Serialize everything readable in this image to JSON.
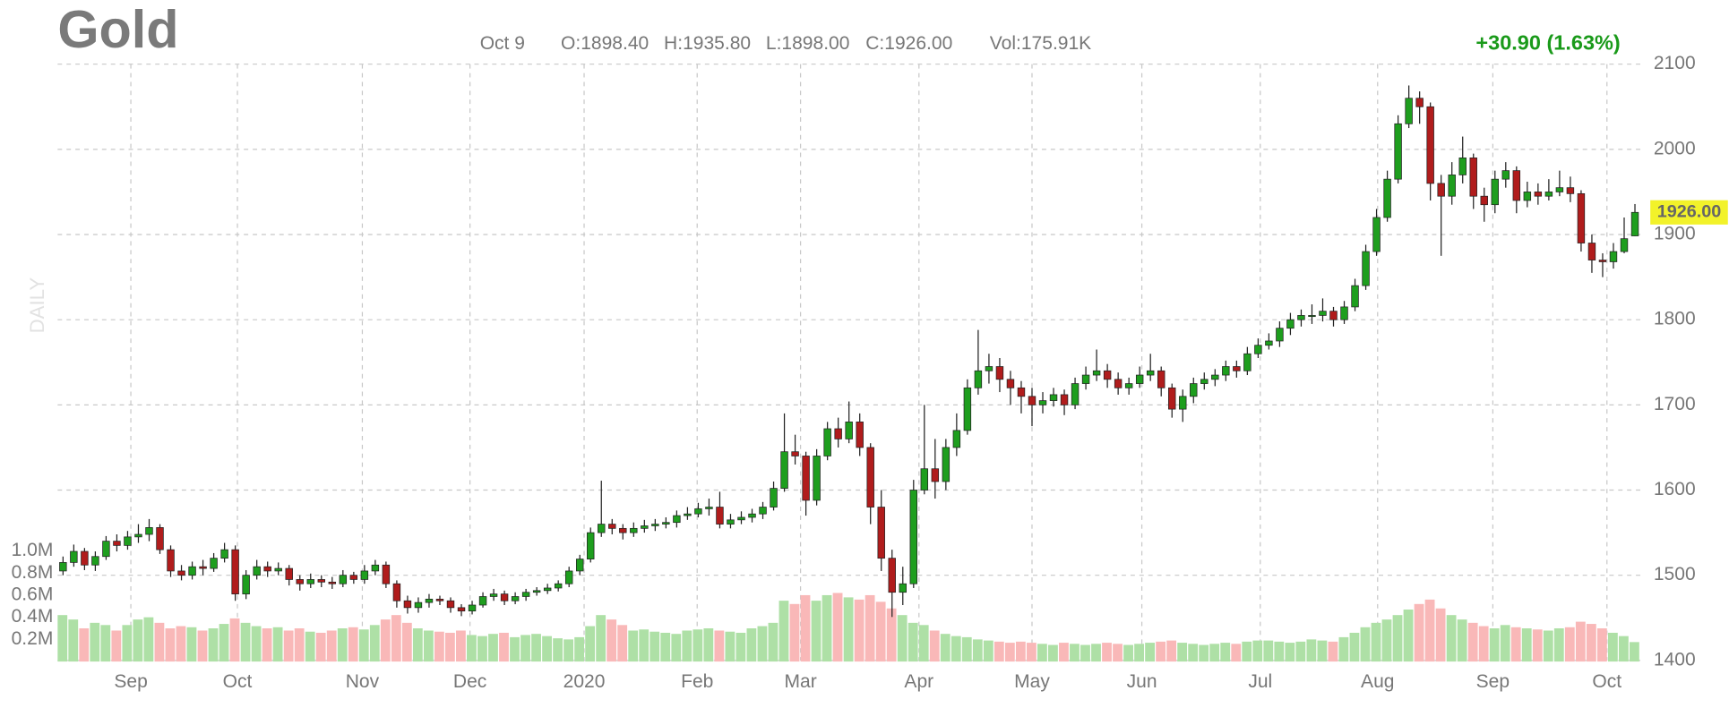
{
  "chart_data": {
    "type": "candlestick",
    "title": "Gold",
    "watermark": "DAILY",
    "info": [
      "Oct 9",
      "O:1898.40",
      "H:1935.80",
      "L:1898.00",
      "C:1926.00",
      "Vol:175.91K"
    ],
    "change": "+30.90 (1.63%)",
    "last_label": "1926.00",
    "up_color": "#1e9e1e",
    "down_color": "#b01c1c",
    "volume_up_color": "#aee0a6",
    "volume_down_color": "#f9b8b8",
    "grid": true,
    "xlim": [
      0,
      147
    ],
    "xticks": [
      {
        "value": 6.8,
        "label": "Sep"
      },
      {
        "value": 16.7,
        "label": "Oct"
      },
      {
        "value": 28.3,
        "label": "Nov"
      },
      {
        "value": 38.3,
        "label": "Dec"
      },
      {
        "value": 48.9,
        "label": "2020"
      },
      {
        "value": 59.4,
        "label": "Feb"
      },
      {
        "value": 69.0,
        "label": "Mar"
      },
      {
        "value": 80.0,
        "label": "Apr"
      },
      {
        "value": 90.5,
        "label": "May"
      },
      {
        "value": 100.7,
        "label": "Jun"
      },
      {
        "value": 111.7,
        "label": "Jul"
      },
      {
        "value": 122.6,
        "label": "Aug"
      },
      {
        "value": 133.3,
        "label": "Sep"
      },
      {
        "value": 143.9,
        "label": "Oct"
      }
    ],
    "ylim": [
      1400,
      2100
    ],
    "yticks": [
      1400,
      1500,
      1600,
      1700,
      1800,
      1900,
      2000,
      2100
    ],
    "y2lim": [
      0,
      1000000
    ],
    "y2ticks": [
      {
        "value": 200000,
        "label": "0.2M"
      },
      {
        "value": 400000,
        "label": "0.4M"
      },
      {
        "value": 600000,
        "label": "0.6M"
      },
      {
        "value": 800000,
        "label": "0.8M"
      },
      {
        "value": 1000000,
        "label": "1.0M"
      }
    ],
    "open": [
      1505,
      1515,
      1528,
      1512,
      1522,
      1540,
      1535,
      1545,
      1548,
      1556,
      1530,
      1505,
      1500,
      1510,
      1508,
      1520,
      1530,
      1478,
      1500,
      1510,
      1505,
      1508,
      1495,
      1490,
      1495,
      1492,
      1490,
      1500,
      1495,
      1505,
      1512,
      1490,
      1470,
      1462,
      1468,
      1472,
      1470,
      1462,
      1458,
      1465,
      1475,
      1478,
      1470,
      1475,
      1480,
      1482,
      1485,
      1490,
      1505,
      1519,
      1550,
      1560,
      1555,
      1550,
      1555,
      1558,
      1560,
      1562,
      1570,
      1572,
      1578,
      1580,
      1560,
      1565,
      1568,
      1572,
      1580,
      1602,
      1645,
      1640,
      1588,
      1640,
      1672,
      1660,
      1680,
      1650,
      1580,
      1520,
      1480,
      1490,
      1600,
      1625,
      1610,
      1650,
      1670,
      1720,
      1740,
      1745,
      1730,
      1720,
      1710,
      1700,
      1705,
      1712,
      1700,
      1725,
      1735,
      1740,
      1730,
      1720,
      1725,
      1735,
      1740,
      1720,
      1695,
      1710,
      1725,
      1730,
      1735,
      1745,
      1740,
      1760,
      1770,
      1775,
      1790,
      1800,
      1805,
      1805,
      1810,
      1800,
      1815,
      1840,
      1880,
      1920,
      1965,
      2030,
      2060,
      2050,
      1960,
      1945,
      1970,
      1990,
      1945,
      1935,
      1965,
      1975,
      1940,
      1950,
      1945,
      1950,
      1955,
      1948,
      1890,
      1870,
      1868,
      1880,
      1898.4
    ],
    "high": [
      1522,
      1536,
      1532,
      1528,
      1546,
      1548,
      1552,
      1560,
      1566,
      1560,
      1535,
      1512,
      1516,
      1518,
      1526,
      1538,
      1535,
      1506,
      1518,
      1516,
      1515,
      1512,
      1500,
      1502,
      1500,
      1498,
      1506,
      1504,
      1512,
      1518,
      1516,
      1494,
      1476,
      1474,
      1478,
      1476,
      1474,
      1466,
      1470,
      1480,
      1484,
      1482,
      1480,
      1484,
      1486,
      1490,
      1494,
      1510,
      1524,
      1556,
      1611,
      1566,
      1560,
      1562,
      1565,
      1566,
      1568,
      1576,
      1580,
      1585,
      1590,
      1598,
      1572,
      1575,
      1578,
      1586,
      1610,
      1690,
      1665,
      1645,
      1648,
      1680,
      1685,
      1704,
      1690,
      1655,
      1600,
      1530,
      1510,
      1612,
      1700,
      1660,
      1660,
      1690,
      1730,
      1788,
      1760,
      1755,
      1740,
      1728,
      1720,
      1715,
      1720,
      1718,
      1732,
      1745,
      1765,
      1748,
      1738,
      1732,
      1745,
      1760,
      1745,
      1725,
      1718,
      1732,
      1738,
      1742,
      1752,
      1752,
      1768,
      1778,
      1784,
      1798,
      1808,
      1812,
      1818,
      1825,
      1815,
      1822,
      1848,
      1888,
      1930,
      1975,
      2040,
      2075,
      2068,
      2055,
      1970,
      1985,
      2015,
      1995,
      1955,
      1975,
      1985,
      1980,
      1962,
      1960,
      1965,
      1975,
      1968,
      1952,
      1900,
      1878,
      1890,
      1920,
      1935.8
    ],
    "low": [
      1500,
      1510,
      1506,
      1505,
      1518,
      1528,
      1530,
      1538,
      1540,
      1525,
      1498,
      1494,
      1495,
      1500,
      1504,
      1515,
      1470,
      1472,
      1495,
      1498,
      1500,
      1488,
      1482,
      1485,
      1486,
      1484,
      1486,
      1490,
      1490,
      1500,
      1485,
      1462,
      1455,
      1456,
      1462,
      1465,
      1456,
      1452,
      1454,
      1462,
      1470,
      1465,
      1466,
      1470,
      1476,
      1478,
      1481,
      1486,
      1500,
      1515,
      1545,
      1548,
      1542,
      1545,
      1550,
      1552,
      1555,
      1556,
      1565,
      1568,
      1570,
      1555,
      1555,
      1560,
      1562,
      1566,
      1576,
      1598,
      1630,
      1570,
      1582,
      1635,
      1650,
      1655,
      1640,
      1560,
      1505,
      1451,
      1465,
      1485,
      1595,
      1590,
      1600,
      1640,
      1665,
      1712,
      1725,
      1715,
      1700,
      1690,
      1675,
      1690,
      1698,
      1688,
      1695,
      1718,
      1728,
      1720,
      1712,
      1712,
      1720,
      1728,
      1710,
      1685,
      1680,
      1702,
      1718,
      1722,
      1728,
      1732,
      1735,
      1755,
      1765,
      1768,
      1782,
      1792,
      1795,
      1798,
      1792,
      1795,
      1810,
      1835,
      1875,
      1915,
      1960,
      2025,
      2030,
      1940,
      1875,
      1935,
      1960,
      1930,
      1915,
      1925,
      1955,
      1925,
      1932,
      1935,
      1940,
      1945,
      1938,
      1880,
      1855,
      1850,
      1860,
      1878,
      1898
    ],
    "close": [
      1515,
      1528,
      1512,
      1522,
      1540,
      1535,
      1545,
      1548,
      1556,
      1530,
      1505,
      1500,
      1510,
      1508,
      1520,
      1530,
      1478,
      1500,
      1510,
      1505,
      1508,
      1495,
      1490,
      1495,
      1492,
      1490,
      1500,
      1495,
      1505,
      1512,
      1490,
      1470,
      1462,
      1468,
      1472,
      1470,
      1462,
      1458,
      1465,
      1475,
      1478,
      1470,
      1475,
      1480,
      1482,
      1485,
      1490,
      1505,
      1519,
      1550,
      1560,
      1555,
      1550,
      1555,
      1558,
      1560,
      1562,
      1570,
      1572,
      1578,
      1580,
      1560,
      1565,
      1568,
      1572,
      1580,
      1602,
      1645,
      1640,
      1588,
      1640,
      1672,
      1660,
      1680,
      1650,
      1580,
      1520,
      1480,
      1490,
      1600,
      1625,
      1610,
      1650,
      1670,
      1720,
      1740,
      1745,
      1730,
      1720,
      1710,
      1700,
      1705,
      1712,
      1700,
      1725,
      1735,
      1740,
      1730,
      1720,
      1725,
      1735,
      1740,
      1720,
      1695,
      1710,
      1725,
      1730,
      1735,
      1745,
      1740,
      1760,
      1770,
      1775,
      1790,
      1800,
      1805,
      1805,
      1810,
      1800,
      1815,
      1840,
      1880,
      1920,
      1965,
      2030,
      2060,
      2050,
      1960,
      1945,
      1970,
      1990,
      1945,
      1935,
      1965,
      1975,
      1940,
      1950,
      1945,
      1950,
      1955,
      1948,
      1890,
      1870,
      1868,
      1880,
      1895.1,
      1926
    ],
    "volume": [
      420000,
      380000,
      300000,
      350000,
      330000,
      280000,
      330000,
      380000,
      400000,
      350000,
      300000,
      320000,
      310000,
      280000,
      300000,
      340000,
      390000,
      350000,
      320000,
      300000,
      310000,
      280000,
      300000,
      270000,
      260000,
      280000,
      300000,
      310000,
      290000,
      330000,
      380000,
      420000,
      350000,
      300000,
      280000,
      270000,
      260000,
      280000,
      240000,
      230000,
      250000,
      260000,
      220000,
      240000,
      250000,
      230000,
      210000,
      200000,
      220000,
      320000,
      420000,
      380000,
      330000,
      280000,
      290000,
      270000,
      260000,
      250000,
      280000,
      290000,
      300000,
      280000,
      270000,
      260000,
      300000,
      320000,
      350000,
      550000,
      520000,
      600000,
      550000,
      600000,
      620000,
      580000,
      560000,
      600000,
      540000,
      480000,
      420000,
      350000,
      330000,
      280000,
      250000,
      230000,
      220000,
      200000,
      190000,
      180000,
      170000,
      180000,
      170000,
      160000,
      150000,
      170000,
      160000,
      150000,
      160000,
      170000,
      160000,
      150000,
      160000,
      170000,
      180000,
      190000,
      170000,
      160000,
      150000,
      160000,
      170000,
      160000,
      180000,
      190000,
      190000,
      180000,
      170000,
      180000,
      200000,
      190000,
      180000,
      220000,
      260000,
      310000,
      350000,
      380000,
      420000,
      470000,
      520000,
      560000,
      480000,
      420000,
      380000,
      350000,
      320000,
      300000,
      330000,
      310000,
      300000,
      290000,
      280000,
      300000,
      310000,
      360000,
      340000,
      300000,
      260000,
      230000,
      175910
    ]
  }
}
